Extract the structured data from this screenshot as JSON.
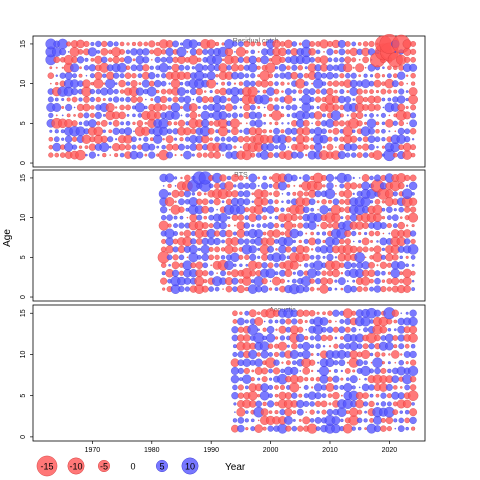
{
  "chart_data": {
    "type": "scatter",
    "subtype": "residual-bubble",
    "ylabel": "Age",
    "xlabel": "Year",
    "xlim": [
      1960,
      2026
    ],
    "ylim": [
      -0.5,
      16
    ],
    "x_ticks": [
      1970,
      1980,
      1990,
      2000,
      2010,
      2020
    ],
    "y_ticks": [
      0,
      5,
      10,
      15
    ],
    "ages": [
      1,
      2,
      3,
      4,
      5,
      6,
      7,
      8,
      9,
      10,
      11,
      12,
      13,
      14,
      15
    ],
    "colors": {
      "positive": "#5555ff",
      "negative": "#ff5555"
    },
    "legend": {
      "position": "bottom-left",
      "values": [
        -15,
        -10,
        -5,
        0,
        5,
        10
      ],
      "labels": [
        "-15",
        "-10",
        "-5",
        "0",
        "5",
        "10"
      ]
    },
    "panels": [
      {
        "title": "Residual catch",
        "years": [
          1963,
          2024
        ],
        "highlights": [
          {
            "year": 2019,
            "age": 15,
            "value": -10
          },
          {
            "year": 2020,
            "age": 15,
            "value": -14
          },
          {
            "year": 2022,
            "age": 15,
            "value": -12
          },
          {
            "year": 2020,
            "age": 14,
            "value": -12
          },
          {
            "year": 2019,
            "age": 14,
            "value": -10
          },
          {
            "year": 2021,
            "age": 13,
            "value": -8
          },
          {
            "year": 2018,
            "age": 13,
            "value": -8
          },
          {
            "year": 1963,
            "age": 15,
            "value": 4
          },
          {
            "year": 1963,
            "age": 14,
            "value": 4
          },
          {
            "year": 1963,
            "age": 13,
            "value": 4
          },
          {
            "year": 1964,
            "age": 9,
            "value": -3
          },
          {
            "year": 1964,
            "age": 5,
            "value": -4
          },
          {
            "year": 2020,
            "age": 1,
            "value": 5
          }
        ]
      },
      {
        "title": "BTS",
        "years": [
          1982,
          2024
        ],
        "highlights": [
          {
            "year": 1988,
            "age": 15,
            "value": 6
          },
          {
            "year": 1989,
            "age": 15,
            "value": 6
          },
          {
            "year": 1987,
            "age": 14,
            "value": 5
          },
          {
            "year": 1989,
            "age": 14,
            "value": 5
          },
          {
            "year": 2018,
            "age": 14,
            "value": -6
          },
          {
            "year": 2019,
            "age": 13,
            "value": -5
          },
          {
            "year": 1982,
            "age": 5,
            "value": -5
          },
          {
            "year": 1992,
            "age": 4,
            "value": -4
          },
          {
            "year": 2012,
            "age": 8,
            "value": 4
          },
          {
            "year": 2023,
            "age": 12,
            "value": -4
          }
        ]
      },
      {
        "title": "Acoustic",
        "years": [
          1994,
          2024
        ],
        "highlights": [
          {
            "year": 2020,
            "age": 15,
            "value": 5
          },
          {
            "year": 1997,
            "age": 13,
            "value": 4
          },
          {
            "year": 1998,
            "age": 12,
            "value": 4
          },
          {
            "year": 2020,
            "age": 3,
            "value": 4
          },
          {
            "year": 2010,
            "age": 2,
            "value": 4
          }
        ]
      }
    ]
  }
}
